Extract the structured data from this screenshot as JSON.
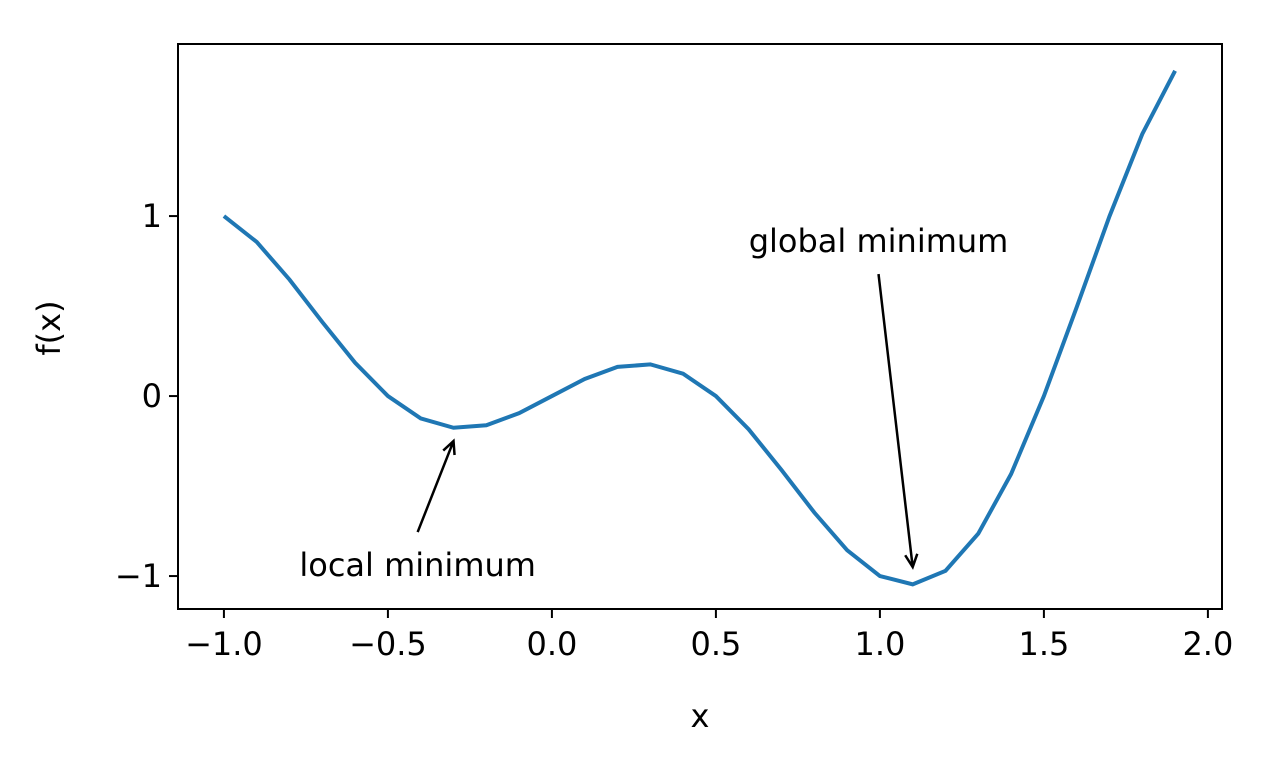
{
  "chart_data": {
    "type": "line",
    "xlabel": "x",
    "ylabel": "f(x)",
    "x": [
      -1.0,
      -0.9,
      -0.8,
      -0.7,
      -0.6,
      -0.5,
      -0.4,
      -0.3,
      -0.2,
      -0.1,
      0.0,
      0.1,
      0.2,
      0.3,
      0.4,
      0.5,
      0.6,
      0.7,
      0.8,
      0.9,
      1.0,
      1.1,
      1.2,
      1.3,
      1.4,
      1.5,
      1.6,
      1.7,
      1.8,
      1.9
    ],
    "series": [
      {
        "color": "#1f77b4",
        "values": [
          1.0,
          0.856,
          0.647,
          0.411,
          0.185,
          0.0,
          -0.124,
          -0.176,
          -0.162,
          -0.095,
          0.0,
          0.095,
          0.162,
          0.176,
          0.124,
          0.0,
          -0.185,
          -0.411,
          -0.647,
          -0.856,
          -1.0,
          -1.046,
          -0.971,
          -0.764,
          -0.433,
          0.0,
          0.494,
          0.999,
          1.456,
          1.807
        ]
      }
    ],
    "xlim": [
      -1.14,
      2.043
    ],
    "ylim": [
      -1.183,
      1.956
    ],
    "xticks": [
      {
        "value": -1.0,
        "label": "−1.0"
      },
      {
        "value": -0.5,
        "label": "−0.5"
      },
      {
        "value": 0.0,
        "label": "0.0"
      },
      0.5,
      {
        "value": 1.0,
        "label": "1.0"
      },
      1.5,
      {
        "value": 2.0,
        "label": "2.0"
      }
    ],
    "yticks": [
      {
        "value": -1,
        "label": "−1"
      },
      0,
      1
    ],
    "grid": false,
    "annotations": [
      {
        "text": "local minimum",
        "xy": [
          -0.3,
          -0.25
        ],
        "xytext": [
          -0.77,
          -1.0
        ]
      },
      {
        "text": "global minimum",
        "xy": [
          1.1,
          -0.95
        ],
        "xytext": [
          0.6,
          0.8
        ]
      }
    ]
  }
}
